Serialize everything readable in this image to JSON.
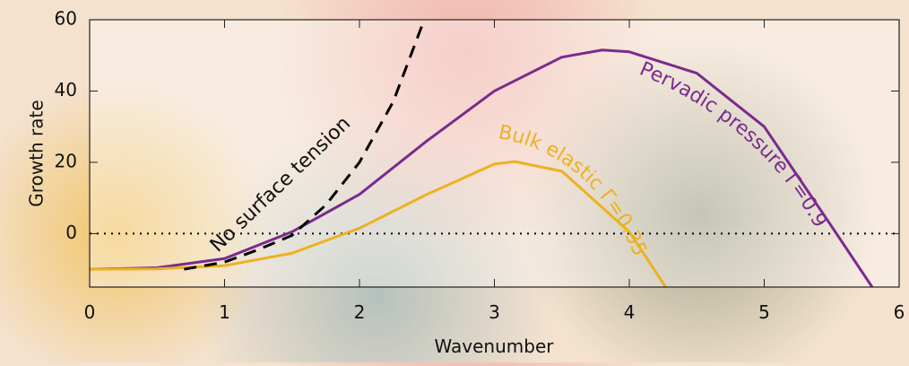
{
  "chart_data": {
    "type": "line",
    "xlabel": "Wavenumber",
    "ylabel": "Growth rate",
    "xlim": [
      0,
      6
    ],
    "ylim": [
      -15,
      60
    ],
    "xticks": [
      0,
      1,
      2,
      3,
      4,
      5,
      6
    ],
    "yticks": [
      0,
      20,
      40,
      60
    ],
    "reference_line": {
      "y": 0,
      "style": "dotted",
      "color": "#000000"
    },
    "series": [
      {
        "name": "Pervadic pressure Γ=0.9",
        "color": "#7b2a8e",
        "style": "solid",
        "x": [
          0,
          0.5,
          1,
          1.5,
          2,
          2.5,
          3,
          3.5,
          3.8,
          4,
          4.5,
          5,
          5.5,
          5.8
        ],
        "values": [
          -10,
          -9.6,
          -7,
          0.5,
          11,
          26,
          40,
          49.5,
          51.5,
          51,
          45,
          30,
          2,
          -15
        ]
      },
      {
        "name": "Bulk elastic Γ=0.35",
        "color": "#edb120",
        "style": "solid",
        "x": [
          0,
          0.5,
          1,
          1.5,
          2,
          2.5,
          3,
          3.15,
          3.5,
          4,
          4.27
        ],
        "values": [
          -10,
          -9.9,
          -9,
          -5.5,
          1.5,
          11,
          19.5,
          20.2,
          17.5,
          0.5,
          -15
        ]
      },
      {
        "name": "No surface tension",
        "color": "#000000",
        "style": "dashed",
        "x": [
          0.7,
          1,
          1.25,
          1.5,
          1.75,
          2,
          2.25,
          2.48
        ],
        "values": [
          -10,
          -8,
          -4.5,
          -0.5,
          8,
          20,
          37,
          60
        ]
      }
    ]
  }
}
